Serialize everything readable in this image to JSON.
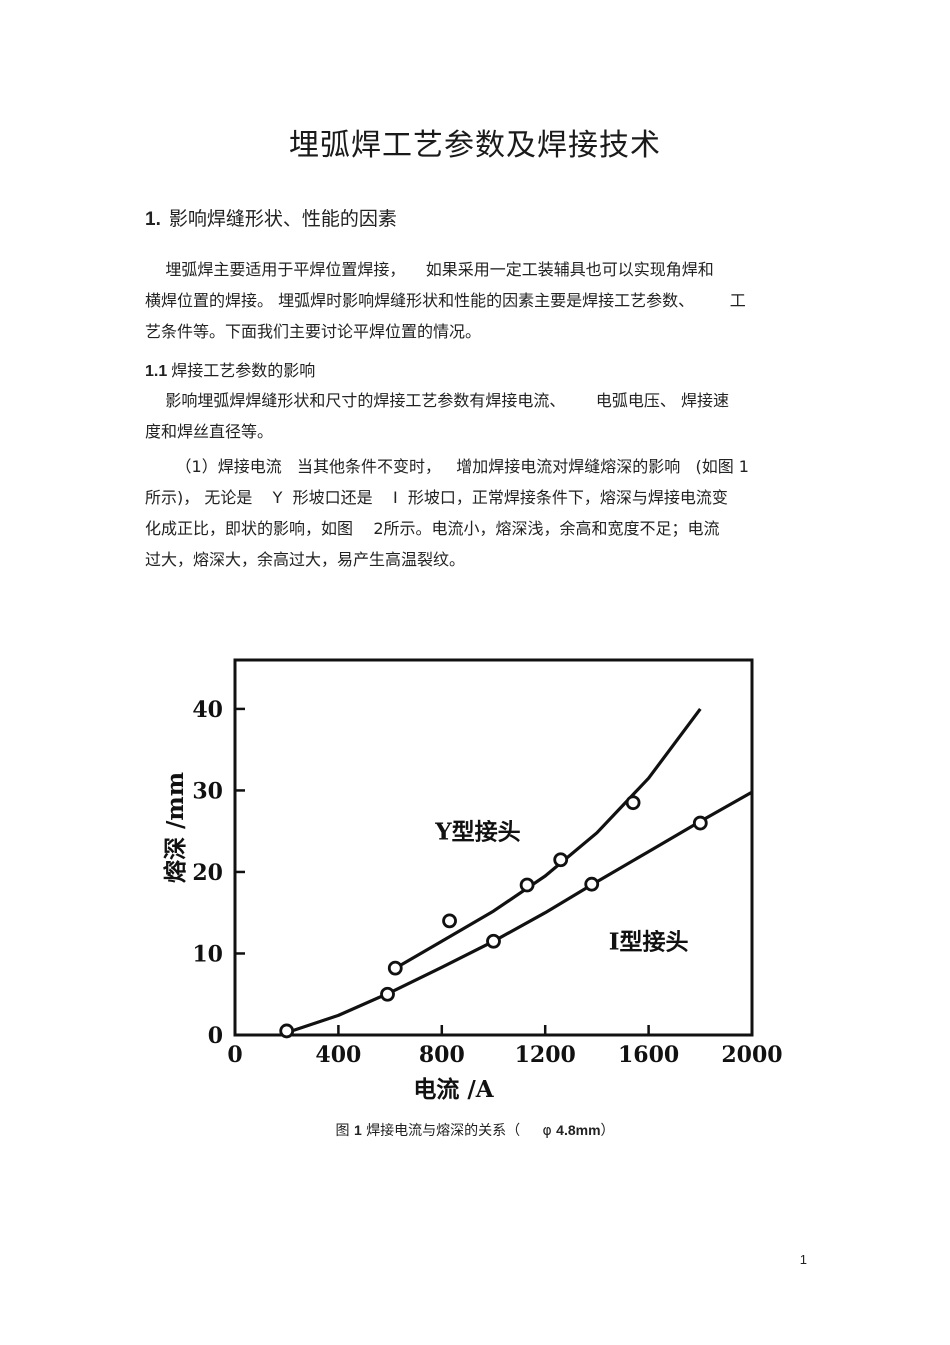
{
  "doc": {
    "title": "埋弧焊工艺参数及焊接技术",
    "section1": {
      "num": "1.",
      "text": "影响焊缝形状、性能的因素"
    },
    "para1": [
      "    埋弧焊主要适用于平焊位置焊接，    如果采用一定工装辅具也可以实现角焊和",
      "横焊位置的焊接。 埋弧焊时影响焊缝形状和性能的因素主要是焊接工艺参数、       工",
      "艺条件等。下面我们主要讨论平焊位置的情况。"
    ],
    "section11": {
      "num": "1.1",
      "text": "焊接工艺参数的影响"
    },
    "para2": [
      "    影响埋弧焊焊缝形状和尺寸的焊接工艺参数有焊接电流、      电弧电压、 焊接速",
      "度和焊丝直径等。"
    ],
    "para3": [
      "      （1）焊接电流   当其他条件不变时，   增加焊接电流对焊缝熔深的影响   (如图 1",
      "所示)， 无论是    Y  形坡口还是    I  形坡口，正常焊接条件下，熔深与焊接电流变",
      "化成正比，即状的影响，如图    2所示。电流小，熔深浅，余高和宽度不足；电流",
      "过大，熔深大，余高过大，易产生高温裂纹。"
    ],
    "caption": {
      "prefix": "图",
      "num": "1",
      "text": "焊接电流与熔深的关系（",
      "phi": "φ",
      "size": "4.8mm",
      "close": "）"
    },
    "page_number": "1"
  },
  "chart_data": {
    "type": "line",
    "xlabel": "电流 /A",
    "ylabel": "熔深 /mm",
    "xlim": [
      0,
      2000
    ],
    "ylim": [
      0,
      46
    ],
    "xticks": [
      0,
      400,
      800,
      1200,
      1600,
      2000
    ],
    "yticks": [
      0,
      10,
      20,
      30,
      40
    ],
    "grid": false,
    "series": [
      {
        "name": "Y型接头",
        "points": [
          {
            "x": 620,
            "y": 8.2
          },
          {
            "x": 830,
            "y": 14
          },
          {
            "x": 1130,
            "y": 18.4
          },
          {
            "x": 1260,
            "y": 21.5
          },
          {
            "x": 1540,
            "y": 28.5
          }
        ],
        "curve": [
          {
            "x": 610,
            "y": 8.0
          },
          {
            "x": 800,
            "y": 11.5
          },
          {
            "x": 1000,
            "y": 15.2
          },
          {
            "x": 1200,
            "y": 19.5
          },
          {
            "x": 1400,
            "y": 24.8
          },
          {
            "x": 1600,
            "y": 31.5
          },
          {
            "x": 1800,
            "y": 40.0
          }
        ]
      },
      {
        "name": "I型接头",
        "points": [
          {
            "x": 200,
            "y": 0.5
          },
          {
            "x": 590,
            "y": 5
          },
          {
            "x": 1000,
            "y": 11.5
          },
          {
            "x": 1380,
            "y": 18.5
          },
          {
            "x": 1800,
            "y": 26
          }
        ],
        "curve": [
          {
            "x": 200,
            "y": 0.3
          },
          {
            "x": 400,
            "y": 2.4
          },
          {
            "x": 600,
            "y": 5.2
          },
          {
            "x": 800,
            "y": 8.3
          },
          {
            "x": 1000,
            "y": 11.5
          },
          {
            "x": 1200,
            "y": 15.0
          },
          {
            "x": 1400,
            "y": 18.8
          },
          {
            "x": 1600,
            "y": 22.5
          },
          {
            "x": 1800,
            "y": 26.2
          },
          {
            "x": 2000,
            "y": 29.8
          }
        ]
      }
    ]
  }
}
